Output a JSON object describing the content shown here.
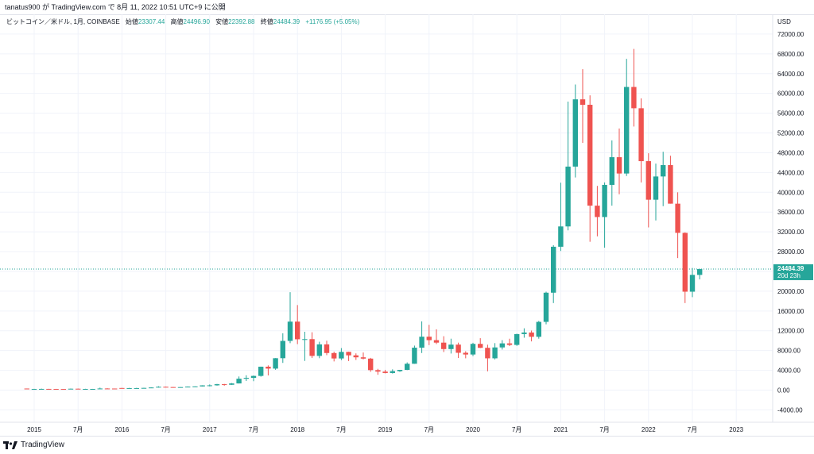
{
  "header": {
    "text": "tanatus900 が TradingView.com で 8月 11, 2022 10:51 UTC+9 に公開"
  },
  "legend": {
    "symbol": "ビットコイン／米ドル, 1月, COINBASE",
    "open_label": "始値",
    "open": "23307.44",
    "high_label": "高値",
    "high": "24496.90",
    "low_label": "安値",
    "low": "22392.88",
    "close_label": "終値",
    "close": "24484.39",
    "change": "+1176.95 (+5.05%)"
  },
  "footer": {
    "brand": "TradingView"
  },
  "colors": {
    "up": "#26a69a",
    "down": "#ef5350",
    "grid": "#f0f3fa",
    "axis_text": "#131722"
  },
  "chart_data": {
    "type": "candlestick",
    "title": "ビットコイン／米ドル, 1月, COINBASE",
    "currency": "USD",
    "y_ticks": [
      "-4000.00",
      "0.00",
      "4000.00",
      "8000.00",
      "12000.00",
      "16000.00",
      "20000.00",
      "24000.00",
      "28000.00",
      "32000.00",
      "36000.00",
      "40000.00",
      "44000.00",
      "48000.00",
      "52000.00",
      "56000.00",
      "60000.00",
      "64000.00",
      "68000.00",
      "72000.00"
    ],
    "y_tick_values": [
      -4000,
      0,
      4000,
      8000,
      12000,
      16000,
      20000,
      24000,
      28000,
      32000,
      36000,
      40000,
      44000,
      48000,
      52000,
      56000,
      60000,
      64000,
      68000,
      72000
    ],
    "ylim": [
      -6500,
      76000
    ],
    "x_labels": [
      {
        "label": "2015",
        "month_index": 0
      },
      {
        "label": "7月",
        "month_index": 6
      },
      {
        "label": "2016",
        "month_index": 12
      },
      {
        "label": "7月",
        "month_index": 18
      },
      {
        "label": "2017",
        "month_index": 24
      },
      {
        "label": "7月",
        "month_index": 30
      },
      {
        "label": "2018",
        "month_index": 36
      },
      {
        "label": "7月",
        "month_index": 42
      },
      {
        "label": "2019",
        "month_index": 48
      },
      {
        "label": "7月",
        "month_index": 54
      },
      {
        "label": "2020",
        "month_index": 60
      },
      {
        "label": "7月",
        "month_index": 66
      },
      {
        "label": "2021",
        "month_index": 72
      },
      {
        "label": "7月",
        "month_index": 78
      },
      {
        "label": "2022",
        "month_index": 84
      },
      {
        "label": "7月",
        "month_index": 90
      },
      {
        "label": "2023",
        "month_index": 96
      }
    ],
    "last_price_label": "24484.39",
    "countdown_label": "20d 23h",
    "last_price": 24484.39,
    "first_month_index": -1,
    "candles": [
      [
        320,
        330,
        200,
        200
      ],
      [
        200,
        260,
        170,
        230
      ],
      [
        230,
        300,
        200,
        250
      ],
      [
        250,
        260,
        210,
        235
      ],
      [
        235,
        255,
        220,
        230
      ],
      [
        230,
        240,
        210,
        225
      ],
      [
        225,
        320,
        210,
        285
      ],
      [
        285,
        320,
        190,
        230
      ],
      [
        230,
        270,
        220,
        235
      ],
      [
        235,
        250,
        220,
        238
      ],
      [
        238,
        500,
        230,
        330
      ],
      [
        330,
        380,
        290,
        320
      ],
      [
        320,
        330,
        280,
        315
      ],
      [
        430,
        450,
        350,
        370
      ],
      [
        370,
        440,
        370,
        415
      ],
      [
        415,
        455,
        370,
        415
      ],
      [
        415,
        460,
        410,
        450
      ],
      [
        450,
        550,
        440,
        530
      ],
      [
        530,
        780,
        520,
        670
      ],
      [
        670,
        700,
        600,
        620
      ],
      [
        620,
        620,
        480,
        575
      ],
      [
        575,
        615,
        590,
        610
      ],
      [
        610,
        740,
        605,
        700
      ],
      [
        700,
        760,
        700,
        745
      ],
      [
        745,
        980,
        745,
        960
      ],
      [
        960,
        1150,
        750,
        970
      ],
      [
        970,
        1270,
        910,
        1190
      ],
      [
        1190,
        1260,
        900,
        1080
      ],
      [
        1080,
        1430,
        1060,
        1350
      ],
      [
        1350,
        2760,
        1340,
        2300
      ],
      [
        2300,
        3000,
        1850,
        2480
      ],
      [
        2480,
        2940,
        1800,
        2870
      ],
      [
        2870,
        4750,
        2720,
        4730
      ],
      [
        4730,
        5000,
        2970,
        4350
      ],
      [
        4350,
        6470,
        4110,
        6450
      ],
      [
        6450,
        11500,
        5500,
        9950
      ],
      [
        9950,
        19800,
        9500,
        13850
      ],
      [
        13850,
        17200,
        9300,
        10280
      ],
      [
        10280,
        11800,
        5900,
        10310
      ],
      [
        10310,
        11700,
        6500,
        6920
      ],
      [
        6920,
        9780,
        6450,
        9250
      ],
      [
        9250,
        10000,
        7070,
        7500
      ],
      [
        7500,
        7770,
        5800,
        6400
      ],
      [
        6400,
        8500,
        6070,
        7730
      ],
      [
        7730,
        7760,
        5870,
        7030
      ],
      [
        7030,
        7430,
        6100,
        6630
      ],
      [
        6630,
        7600,
        6200,
        6370
      ],
      [
        6370,
        6520,
        3700,
        4040
      ],
      [
        4040,
        4300,
        3100,
        3740
      ],
      [
        3740,
        4100,
        3380,
        3460
      ],
      [
        3460,
        4200,
        3350,
        3830
      ],
      [
        3830,
        4100,
        3700,
        4090
      ],
      [
        4090,
        5600,
        4050,
        5330
      ],
      [
        5330,
        9000,
        5320,
        8580
      ],
      [
        8580,
        13900,
        7500,
        10800
      ],
      [
        10800,
        13200,
        9100,
        10100
      ],
      [
        10100,
        12300,
        9300,
        9600
      ],
      [
        9600,
        10900,
        7700,
        8300
      ],
      [
        8300,
        10400,
        7400,
        9200
      ],
      [
        9200,
        9600,
        6500,
        7550
      ],
      [
        7550,
        7870,
        6430,
        7200
      ],
      [
        7200,
        9580,
        6870,
        9350
      ],
      [
        9350,
        10500,
        8500,
        8550
      ],
      [
        8550,
        9180,
        3800,
        6430
      ],
      [
        6430,
        9500,
        6200,
        8630
      ],
      [
        8630,
        10100,
        8200,
        9450
      ],
      [
        9450,
        10400,
        8900,
        9140
      ],
      [
        9140,
        11400,
        8950,
        11330
      ],
      [
        11330,
        12500,
        10600,
        11650
      ],
      [
        11650,
        12050,
        9850,
        10780
      ],
      [
        10780,
        14000,
        10400,
        13800
      ],
      [
        13800,
        19900,
        13300,
        19700
      ],
      [
        19700,
        29300,
        17600,
        28990
      ],
      [
        28990,
        41950,
        28130,
        33100
      ],
      [
        33100,
        58350,
        32300,
        45200
      ],
      [
        45200,
        61800,
        43000,
        58800
      ],
      [
        58800,
        64900,
        50000,
        57700
      ],
      [
        57700,
        59600,
        30000,
        37300
      ],
      [
        37300,
        41300,
        31100,
        35000
      ],
      [
        35000,
        42000,
        28800,
        41500
      ],
      [
        41500,
        50500,
        37300,
        47100
      ],
      [
        47100,
        52900,
        39600,
        43800
      ],
      [
        43800,
        67000,
        43300,
        61300
      ],
      [
        61300,
        69000,
        53300,
        57000
      ],
      [
        57000,
        59000,
        42000,
        46300
      ],
      [
        46300,
        47900,
        32900,
        38500
      ],
      [
        38500,
        45800,
        34300,
        43200
      ],
      [
        43200,
        48200,
        37200,
        45500
      ],
      [
        45500,
        47400,
        37700,
        37700
      ],
      [
        37700,
        40000,
        26700,
        31800
      ],
      [
        31800,
        31900,
        17600,
        19900
      ],
      [
        19900,
        24700,
        18800,
        23300
      ],
      [
        23300,
        24500,
        22400,
        24484.39
      ]
    ]
  }
}
